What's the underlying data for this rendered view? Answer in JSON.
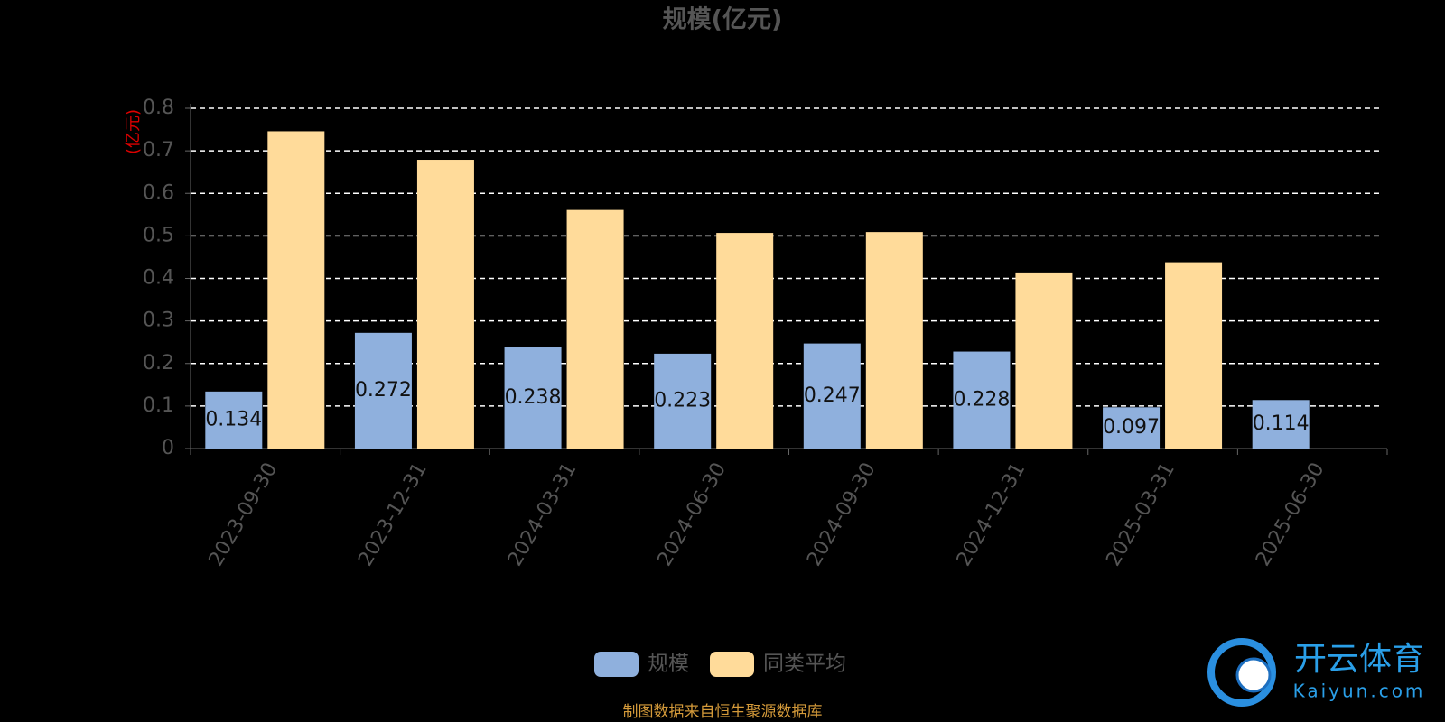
{
  "chart_data": {
    "type": "bar",
    "title": "规模(亿元)",
    "y_label": "(亿元)",
    "categories": [
      "2023-09-30",
      "2023-12-31",
      "2024-03-31",
      "2024-06-30",
      "2024-09-30",
      "2024-12-31",
      "2025-03-31",
      "2025-06-30"
    ],
    "series": [
      {
        "name": "规模",
        "color": "#8fb0dd",
        "values": [
          0.134,
          0.272,
          0.238,
          0.223,
          0.247,
          0.228,
          0.097,
          0.114
        ]
      },
      {
        "name": "同类平均",
        "color": "#ffdb9a",
        "values": [
          0.746,
          0.679,
          0.561,
          0.507,
          0.509,
          0.414,
          0.438,
          null
        ]
      }
    ],
    "ylim": [
      0,
      0.8
    ],
    "yticks": [
      0,
      0.1,
      0.2,
      0.3,
      0.4,
      0.5,
      0.6,
      0.7,
      0.8
    ],
    "grid": true,
    "source": "制图数据来自恒生聚源数据库"
  },
  "watermark": {
    "brand": "开云体育",
    "site": "Kaiyun.com"
  }
}
